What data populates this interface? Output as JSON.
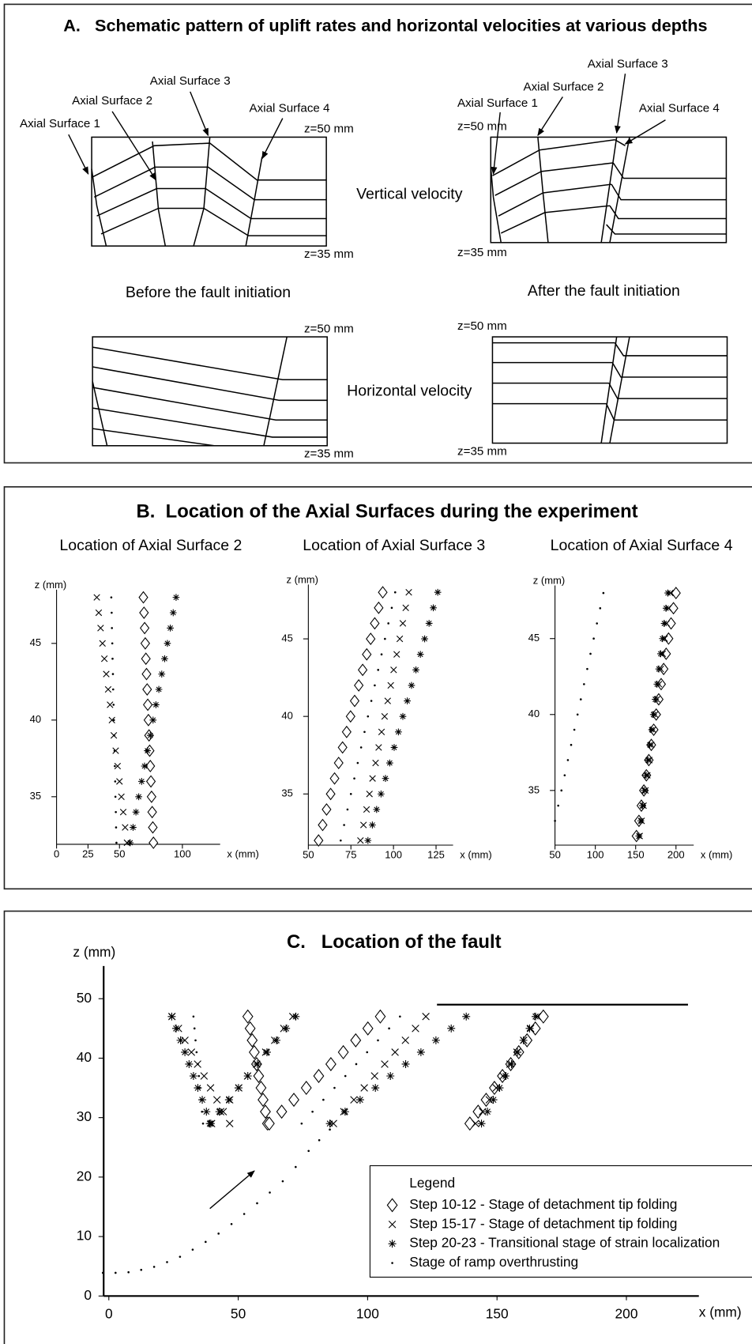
{
  "panel_a": {
    "title": "A.   Schematic pattern of uplift rates and horizontal velocities at various depths",
    "vertical_velocity": "Vertical velocity",
    "horizontal_velocity": "Horizontal velocity",
    "before": "Before the fault initiation",
    "after": "After the fault initiation",
    "before_labels": [
      "Axial Surface 1",
      "Axial Surface 2",
      "Axial Surface 3",
      "Axial Surface 4"
    ],
    "after_labels": [
      "Axial Surface 1",
      "Axial Surface 2",
      "Axial Surface 3",
      "Axial Surface 4"
    ],
    "boxes": [
      {
        "top": "z=50 mm",
        "bottom": "z=35 mm"
      },
      {
        "top": "z=50 mm",
        "bottom": "z=35 mm"
      },
      {
        "top": "z=50 mm",
        "bottom": "z=35 mm"
      },
      {
        "top": "z=50 mm",
        "bottom": "z=35 mm"
      }
    ]
  },
  "panel_b": {
    "title": "B.  Location of the Axial Surfaces during the experiment"
  },
  "chart_data": [
    {
      "type": "scatter",
      "title": "Location of Axial Surface 2",
      "x_label": "x (mm)",
      "y_label": "z (mm)",
      "xlim": [
        0,
        130
      ],
      "ylim": [
        31.9,
        48.5
      ],
      "xticks": [
        0,
        25,
        50,
        100
      ],
      "yticks": [
        35,
        40,
        45
      ],
      "series": [
        {
          "marker": "diamond",
          "color": "#000000",
          "y": [
            32,
            33,
            34,
            35,
            36,
            37,
            38,
            39,
            40,
            41,
            42,
            43,
            44,
            45,
            46,
            47,
            48
          ],
          "x": [
            77.0,
            76.5,
            76.0,
            75.5,
            75.0,
            74.5,
            74.0,
            73.5,
            73.0,
            72.5,
            72.0,
            71.5,
            71.0,
            70.5,
            70.0,
            69.5,
            69.0
          ]
        },
        {
          "marker": "cross",
          "color": "#000000",
          "y": [
            32,
            33,
            34,
            35,
            36,
            37,
            38,
            39,
            40,
            41,
            42,
            43,
            44,
            45,
            46,
            47,
            48
          ],
          "x": [
            56,
            54.5,
            53,
            51.5,
            50,
            48.5,
            47,
            45.5,
            44,
            42.5,
            41,
            39.5,
            38,
            36.5,
            35,
            33.5,
            32
          ]
        },
        {
          "marker": "asterisk",
          "color": "#000000",
          "y": [
            32,
            33,
            34,
            35,
            36,
            37,
            38,
            39,
            40,
            41,
            42,
            43,
            44,
            45,
            46,
            47,
            48
          ],
          "x": [
            58.5,
            60.8,
            63.1,
            65.3,
            67.6,
            69.9,
            72.2,
            74.5,
            76.7,
            79.0,
            81.3,
            83.6,
            85.9,
            88.1,
            90.4,
            92.7,
            95.0
          ]
        },
        {
          "marker": "dot",
          "color": "#000000",
          "y": [
            32,
            33,
            34,
            35,
            36,
            37,
            38,
            39,
            40,
            41,
            42,
            43,
            44,
            45,
            46,
            47,
            48
          ],
          "x": [
            47.6,
            47.3,
            47.1,
            46.8,
            46.6,
            46.3,
            46.1,
            45.8,
            45.6,
            45.3,
            45.0,
            44.8,
            44.5,
            44.3,
            44.0,
            43.8,
            43.5
          ]
        }
      ]
    },
    {
      "type": "scatter",
      "title": "Location of Axial Surface 3",
      "x_label": "x (mm)",
      "y_label": "z (mm)",
      "xlim": [
        50,
        135
      ],
      "ylim": [
        31.7,
        48.5
      ],
      "xticks": [
        50,
        75,
        100,
        125
      ],
      "yticks": [
        35,
        40,
        45
      ],
      "series": [
        {
          "marker": "diamond",
          "color": "#000000",
          "y": [
            32,
            33,
            34,
            35,
            36,
            37,
            38,
            39,
            40,
            41,
            42,
            43,
            44,
            45,
            46,
            47,
            48
          ],
          "x": [
            56.0,
            58.4,
            60.7,
            63.1,
            65.4,
            67.8,
            70.1,
            72.5,
            74.8,
            77.2,
            79.6,
            81.9,
            84.3,
            86.6,
            89.0,
            91.3,
            93.7
          ]
        },
        {
          "marker": "cross",
          "color": "#000000",
          "y": [
            32,
            33,
            34,
            35,
            36,
            37,
            38,
            39,
            40,
            41,
            42,
            43,
            44,
            45,
            46,
            47,
            48
          ],
          "x": [
            80.6,
            82.4,
            84.2,
            85.9,
            87.7,
            89.5,
            91.3,
            93.0,
            94.8,
            96.6,
            98.4,
            100.1,
            101.9,
            103.7,
            105.5,
            107.2,
            109.0
          ]
        },
        {
          "marker": "asterisk",
          "color": "#000000",
          "y": [
            32,
            33,
            34,
            35,
            36,
            37,
            38,
            39,
            40,
            41,
            42,
            43,
            44,
            45,
            46,
            47,
            48
          ],
          "x": [
            85.0,
            87.6,
            90.1,
            92.7,
            95.3,
            97.8,
            100.4,
            102.9,
            105.5,
            108.1,
            110.6,
            113.2,
            115.8,
            118.3,
            120.9,
            123.4,
            126.0
          ]
        },
        {
          "marker": "dot",
          "color": "#000000",
          "y": [
            32,
            33,
            34,
            35,
            36,
            37,
            38,
            39,
            40,
            41,
            42,
            43,
            44,
            45,
            46,
            47,
            48
          ],
          "x": [
            69,
            71,
            73,
            75,
            77,
            79,
            81,
            83,
            85,
            87,
            89,
            91,
            93,
            95,
            97,
            99,
            101
          ]
        }
      ]
    },
    {
      "type": "scatter",
      "title": "Location of Axial Surface 4",
      "x_label": "x (mm)",
      "y_label": "z (mm)",
      "xlim": [
        50,
        222
      ],
      "ylim": [
        31.4,
        48.5
      ],
      "xticks": [
        50,
        100,
        150,
        200
      ],
      "yticks": [
        35,
        40,
        45
      ],
      "series": [
        {
          "marker": "diamond",
          "color": "#000000",
          "y": [
            32,
            33,
            34,
            35,
            36,
            37,
            38,
            39,
            40,
            41,
            42,
            43,
            44,
            45,
            46,
            47,
            48
          ],
          "x": [
            151.0,
            154.1,
            157.1,
            160.2,
            163.3,
            166.3,
            169.4,
            172.4,
            175.5,
            178.6,
            181.6,
            184.7,
            187.8,
            190.8,
            193.9,
            196.9,
            200.0
          ]
        },
        {
          "marker": "cross",
          "color": "#000000",
          "y": [
            32,
            33,
            34,
            35,
            36,
            37,
            38,
            39,
            40,
            41,
            42,
            43,
            44,
            45,
            46,
            47,
            48
          ],
          "x": [
            155.0,
            157.4,
            159.8,
            162.1,
            164.5,
            166.9,
            169.3,
            171.6,
            174.0,
            176.4,
            178.8,
            181.1,
            183.5,
            185.9,
            188.3,
            190.6,
            193.0
          ]
        },
        {
          "marker": "asterisk",
          "color": "#000000",
          "y": [
            32,
            33,
            34,
            35,
            36,
            37,
            38,
            39,
            40,
            41,
            42,
            43,
            44,
            45,
            46,
            47,
            48
          ],
          "x": [
            154.0,
            156.3,
            158.5,
            160.8,
            163.0,
            165.3,
            167.5,
            169.8,
            172.0,
            174.3,
            176.5,
            178.8,
            181.0,
            183.3,
            185.5,
            187.8,
            190.0
          ]
        },
        {
          "marker": "dot",
          "color": "#000000",
          "y": [
            33,
            34,
            35,
            36,
            37,
            38,
            39,
            40,
            41,
            42,
            43,
            44,
            45,
            46,
            47,
            48
          ],
          "x": [
            50,
            54,
            58,
            62,
            66,
            70,
            74,
            78,
            82,
            86,
            90,
            94,
            98,
            102,
            106,
            110
          ]
        }
      ]
    },
    {
      "type": "scatter",
      "title": "C.   Location of the fault",
      "x_label": "x (mm)",
      "y_label": "z (mm)",
      "xlim": [
        -2,
        228
      ],
      "ylim": [
        0,
        55.5
      ],
      "xticks": [
        0,
        50,
        100,
        150,
        200
      ],
      "yticks": [
        0,
        10,
        20,
        30,
        40,
        50
      ],
      "legend_title": "Legend",
      "legend": "lower right",
      "series": [
        {
          "name": "Step 10-12 - Stage of detachment tip folding",
          "marker": "diamond",
          "color": "#000000",
          "y": [
            29,
            31,
            33,
            35,
            37,
            39,
            41,
            43,
            45,
            47,
            29,
            31,
            33,
            35,
            37,
            39,
            41,
            43,
            45,
            47,
            29,
            31,
            33,
            35,
            37,
            39,
            41,
            43,
            45,
            47
          ],
          "x": [
            61.3,
            60.5,
            59.6,
            58.8,
            57.9,
            57.1,
            56.2,
            55.4,
            54.6,
            53.7,
            62.0,
            66.8,
            71.5,
            76.3,
            81.1,
            85.8,
            90.6,
            95.4,
            100.1,
            104.9,
            139.5,
            142.7,
            145.8,
            149.0,
            152.1,
            155.3,
            158.4,
            161.6,
            164.8,
            167.9
          ]
        },
        {
          "name": "Step 15-17 - Stage of detachment tip folding",
          "marker": "cross",
          "color": "#000000",
          "y": [
            29,
            31,
            33,
            35,
            37,
            39,
            41,
            43,
            45,
            47,
            29,
            31,
            33,
            35,
            37,
            39,
            41,
            43,
            45,
            47,
            29,
            31,
            33,
            35,
            37,
            39,
            41,
            43,
            45,
            47,
            29,
            31,
            33,
            35,
            37,
            39,
            41,
            43,
            45,
            47
          ],
          "x": [
            46.7,
            44.2,
            41.8,
            39.3,
            36.8,
            34.3,
            31.9,
            29.4,
            26.9,
            24.4,
            39.7,
            43.2,
            46.7,
            50.2,
            53.6,
            57.1,
            60.6,
            64.1,
            67.6,
            71.1,
            86.8,
            90.8,
            94.7,
            98.7,
            102.7,
            106.6,
            110.6,
            114.6,
            118.5,
            122.5,
            141.7,
            144.4,
            147.0,
            149.7,
            152.3,
            155.0,
            157.7,
            160.3,
            163.0,
            165.6
          ]
        },
        {
          "name": "Step 20-23 - Transitional stage of strain localization",
          "marker": "asterisk",
          "color": "#000000",
          "y": [
            29,
            31,
            33,
            35,
            37,
            39,
            41,
            43,
            45,
            47,
            29,
            31,
            33,
            35,
            37,
            39,
            41,
            43,
            45,
            47,
            29,
            31,
            33,
            35,
            37,
            39,
            41,
            43,
            45,
            47,
            29,
            31,
            33,
            35,
            37,
            39,
            41,
            43,
            45,
            47
          ],
          "x": [
            39.4,
            37.7,
            36.1,
            34.4,
            32.7,
            31.0,
            29.4,
            27.7,
            26.0,
            24.3,
            39.0,
            42.7,
            46.4,
            50.1,
            53.7,
            57.4,
            61.1,
            64.8,
            68.5,
            72.2,
            85.4,
            91.3,
            97.1,
            103.0,
            108.8,
            114.7,
            120.6,
            126.4,
            132.3,
            138.1,
            144.0,
            146.3,
            148.6,
            151.0,
            153.3,
            155.6,
            157.9,
            160.2,
            162.6,
            164.9
          ]
        },
        {
          "name": "Stage of ramp overthrusting",
          "marker": "dot",
          "color": "#000000",
          "y": [
            3.9,
            3.9,
            4.0,
            4.4,
            4.9,
            5.7,
            6.6,
            7.8,
            9.1,
            10.5,
            12.1,
            13.8,
            15.6,
            17.4,
            19.3,
            21.7,
            24.4,
            26.2,
            28.0,
            29,
            31,
            33,
            35,
            37,
            39,
            41,
            43,
            45,
            47,
            29,
            31,
            33,
            35,
            37,
            39,
            41,
            43,
            45,
            47
          ],
          "x": [
            -2.3,
            2.6,
            7.6,
            12.5,
            17.5,
            22.5,
            27.5,
            32.4,
            37.4,
            42.4,
            47.4,
            52.3,
            57.3,
            62.2,
            67.2,
            72.2,
            77.2,
            81.3,
            85.4,
            36.4,
            36.0,
            35.6,
            35.2,
            34.8,
            34.4,
            33.9,
            33.5,
            33.1,
            32.7,
            74.5,
            78.7,
            82.9,
            87.2,
            91.4,
            95.6,
            99.8,
            104.0,
            108.3,
            112.5
          ]
        },
        {
          "marker": "line",
          "color": "#000000",
          "y": [
            49,
            49
          ],
          "x": [
            126.8,
            223.8
          ]
        }
      ]
    }
  ]
}
